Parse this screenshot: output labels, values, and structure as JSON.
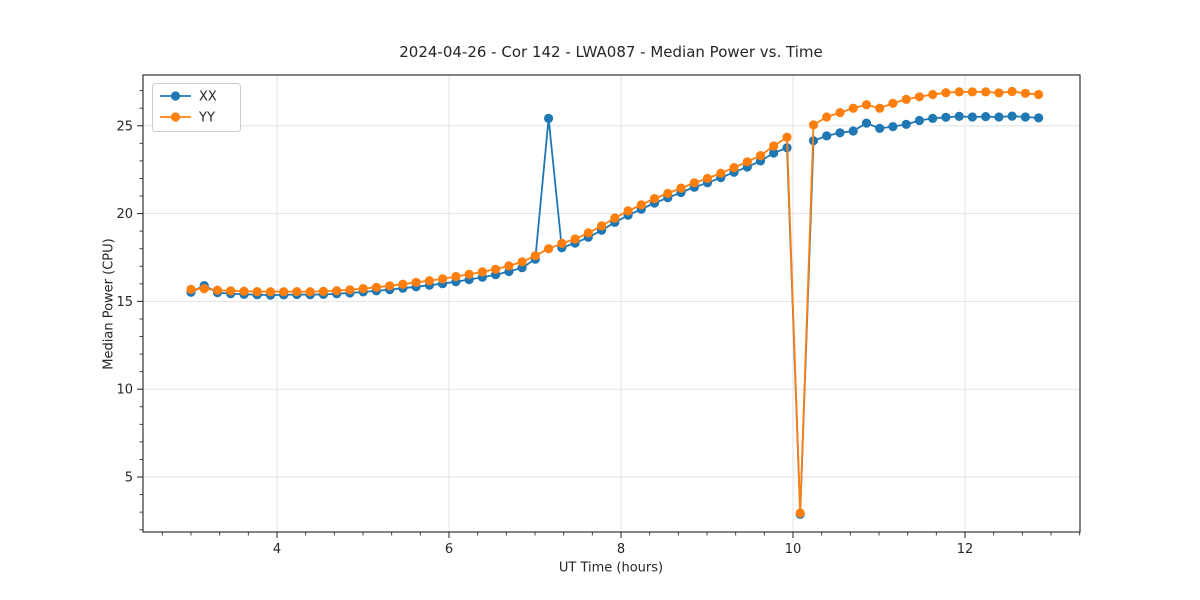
{
  "figure": {
    "title": "2024-04-26 - Cor 142 - LWA087 - Median Power vs. Time"
  },
  "chart_data": {
    "type": "line",
    "title": "2024-04-26 - Cor 142 - LWA087 - Median Power vs. Time",
    "xlabel": "UT Time (hours)",
    "ylabel": "Median Power (CPU)",
    "xlim": [
      2.442,
      13.337
    ],
    "ylim": [
      1.87,
      27.89
    ],
    "x_major_ticks": [
      4,
      6,
      8,
      10,
      12
    ],
    "y_major_ticks": [
      5,
      10,
      15,
      20,
      25
    ],
    "x_minor_step": 0.3333333,
    "y_minor_step": 1,
    "grid": true,
    "legend_position": "upper-left",
    "marker": "circle",
    "x": [
      3.0,
      3.154,
      3.308,
      3.462,
      3.616,
      3.77,
      3.924,
      4.078,
      4.232,
      4.386,
      4.54,
      4.694,
      4.848,
      5.002,
      5.156,
      5.31,
      5.464,
      5.618,
      5.772,
      5.926,
      6.08,
      6.234,
      6.388,
      6.542,
      6.696,
      6.85,
      7.004,
      7.158,
      7.312,
      7.466,
      7.62,
      7.774,
      7.928,
      8.082,
      8.236,
      8.39,
      8.544,
      8.698,
      8.852,
      9.006,
      9.16,
      9.314,
      9.468,
      9.622,
      9.776,
      9.93,
      10.084,
      10.238,
      10.392,
      10.546,
      10.7,
      10.854,
      11.008,
      11.162,
      11.316,
      11.47,
      11.624,
      11.778,
      11.932,
      12.086,
      12.24,
      12.394,
      12.548,
      12.702,
      12.856
    ],
    "series": [
      {
        "name": "XX",
        "color": "#1f77b4",
        "values": [
          15.52,
          15.9,
          15.5,
          15.44,
          15.4,
          15.38,
          15.36,
          15.37,
          15.39,
          15.38,
          15.4,
          15.43,
          15.48,
          15.54,
          15.6,
          15.67,
          15.75,
          15.83,
          15.92,
          16.01,
          16.12,
          16.24,
          16.38,
          16.52,
          16.7,
          16.92,
          17.4,
          25.42,
          18.05,
          18.32,
          18.65,
          19.05,
          19.5,
          19.9,
          20.25,
          20.6,
          20.9,
          21.2,
          21.5,
          21.75,
          22.05,
          22.35,
          22.65,
          23.0,
          23.45,
          23.75,
          2.88,
          24.15,
          24.42,
          24.6,
          24.7,
          25.15,
          24.85,
          24.95,
          25.08,
          25.3,
          25.42,
          25.48,
          25.53,
          25.5,
          25.52,
          25.5,
          25.55,
          25.5,
          25.45
        ]
      },
      {
        "name": "YY",
        "color": "#ff7f0e",
        "values": [
          15.68,
          15.73,
          15.64,
          15.6,
          15.58,
          15.56,
          15.55,
          15.55,
          15.56,
          15.55,
          15.57,
          15.61,
          15.66,
          15.73,
          15.8,
          15.89,
          15.98,
          16.08,
          16.18,
          16.28,
          16.42,
          16.55,
          16.68,
          16.83,
          17.02,
          17.25,
          17.6,
          18.0,
          18.3,
          18.55,
          18.9,
          19.3,
          19.75,
          20.15,
          20.5,
          20.85,
          21.15,
          21.45,
          21.75,
          22.0,
          22.3,
          22.62,
          22.95,
          23.3,
          23.85,
          24.35,
          2.95,
          25.05,
          25.5,
          25.75,
          26.0,
          26.2,
          26.0,
          26.28,
          26.5,
          26.65,
          26.78,
          26.88,
          26.93,
          26.93,
          26.93,
          26.87,
          26.95,
          26.85,
          26.78
        ]
      }
    ],
    "style_colors": {
      "grid": "#e3e3e3",
      "spine": "#333333",
      "text": "#262626",
      "legend_border": "#cccccc",
      "legend_bg": "#ffffff"
    }
  }
}
